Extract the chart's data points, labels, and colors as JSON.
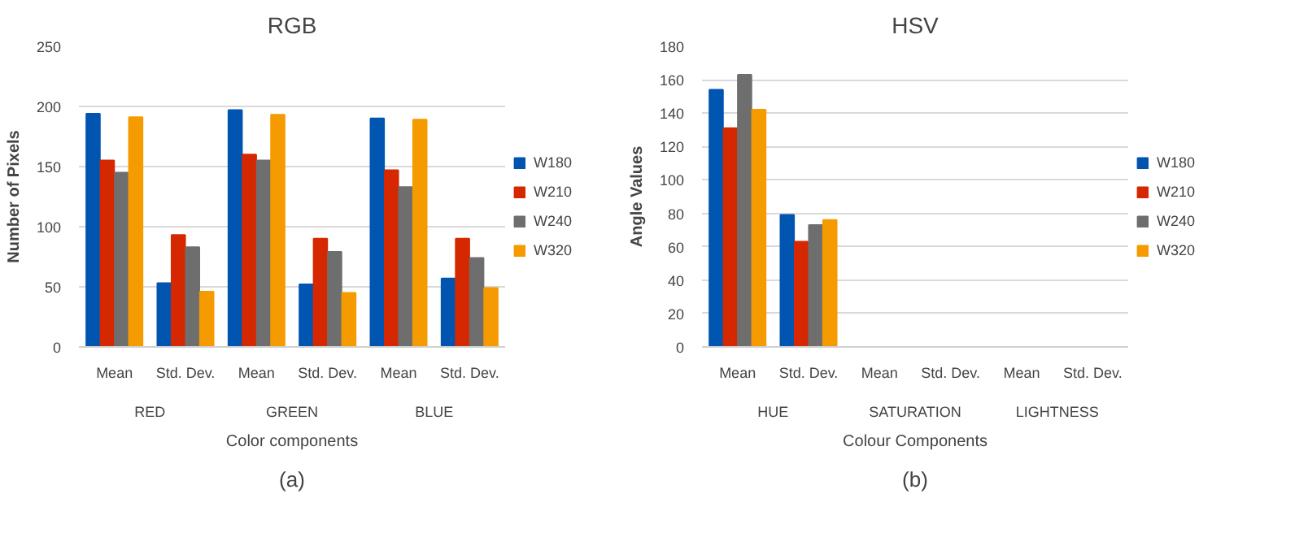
{
  "chart_data": [
    {
      "type": "bar",
      "title": "RGB",
      "xlabel": "Color components",
      "ylabel": "Number of Pixels",
      "categories": [
        "Mean",
        "Std. Dev.",
        "Mean",
        "Std. Dev.",
        "Mean",
        "Std. Dev."
      ],
      "series": [
        {
          "name": "W180",
          "color": "#0055b0",
          "values": [
            194,
            53,
            197,
            52,
            190,
            57
          ]
        },
        {
          "name": "W210",
          "color": "#d62800",
          "values": [
            155,
            93,
            160,
            90,
            147,
            90
          ]
        },
        {
          "name": "W240",
          "color": "#6e6e6e",
          "values": [
            145,
            83,
            155,
            79,
            133,
            74
          ]
        },
        {
          "name": "W320",
          "color": "#f59b00",
          "values": [
            191,
            46,
            193,
            45,
            189,
            49
          ]
        }
      ],
      "ylim": [
        0,
        250
      ],
      "yticks": [
        0,
        50,
        100,
        150,
        200,
        250
      ],
      "grid": "y",
      "legend": "right",
      "annotations": [
        "RED",
        "GREEN",
        "BLUE",
        "(a)"
      ]
    },
    {
      "type": "bar",
      "title": "HSV",
      "xlabel": "Colour Components",
      "ylabel": "Angle Values",
      "categories": [
        "Mean",
        "Std. Dev.",
        "Mean",
        "Std. Dev.",
        "Mean",
        "Std. Dev."
      ],
      "series": [
        {
          "name": "W180",
          "color": "#0055b0",
          "values": [
            154,
            79,
            null,
            null,
            null,
            null
          ]
        },
        {
          "name": "W210",
          "color": "#d62800",
          "values": [
            131,
            63,
            null,
            null,
            null,
            null
          ]
        },
        {
          "name": "W240",
          "color": "#6e6e6e",
          "values": [
            163,
            73,
            null,
            null,
            null,
            null
          ]
        },
        {
          "name": "W320",
          "color": "#f59b00",
          "values": [
            142,
            76,
            null,
            null,
            null,
            null
          ]
        }
      ],
      "ylim": [
        0,
        180
      ],
      "yticks": [
        0,
        20,
        40,
        60,
        80,
        100,
        120,
        140,
        160,
        180
      ],
      "grid": "y",
      "legend": "right",
      "annotations": [
        "HUE",
        "SATURATION",
        "LIGHTNESS",
        "(b)"
      ]
    }
  ]
}
